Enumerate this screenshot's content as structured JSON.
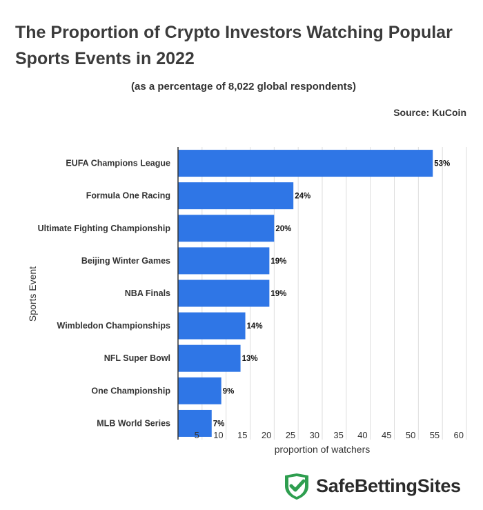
{
  "header": {
    "title": "The Proportion of Crypto Investors Watching Popular Sports Events in 2022",
    "subtitle": "(as a percentage of 8,022 global respondents)",
    "source": "Source: KuCoin"
  },
  "brand": {
    "name": "SafeBettingSites",
    "icon": "shield-check-icon",
    "icon_color": "#2e9e4f"
  },
  "chart_data": {
    "type": "bar",
    "orientation": "horizontal",
    "categories": [
      "EUFA Champions League",
      "Formula One Racing",
      "Ultimate Fighting Championship",
      "Beijing Winter Games",
      "NBA Finals",
      "Wimbledon Championships",
      "NFL Super Bowl",
      "One Championship",
      "MLB World Series"
    ],
    "values": [
      53,
      24,
      20,
      19,
      19,
      14,
      13,
      9,
      7
    ],
    "data_labels": [
      "53%",
      "24%",
      "20%",
      "19%",
      "19%",
      "14%",
      "13%",
      "9%",
      "7%"
    ],
    "xlabel": "proportion of watchers",
    "ylabel": "Sports Event",
    "xlim": [
      0,
      60
    ],
    "xticks": [
      5,
      10,
      15,
      20,
      25,
      30,
      35,
      40,
      45,
      50,
      55,
      60
    ],
    "grid": true,
    "bar_color": "#2f76e6"
  }
}
